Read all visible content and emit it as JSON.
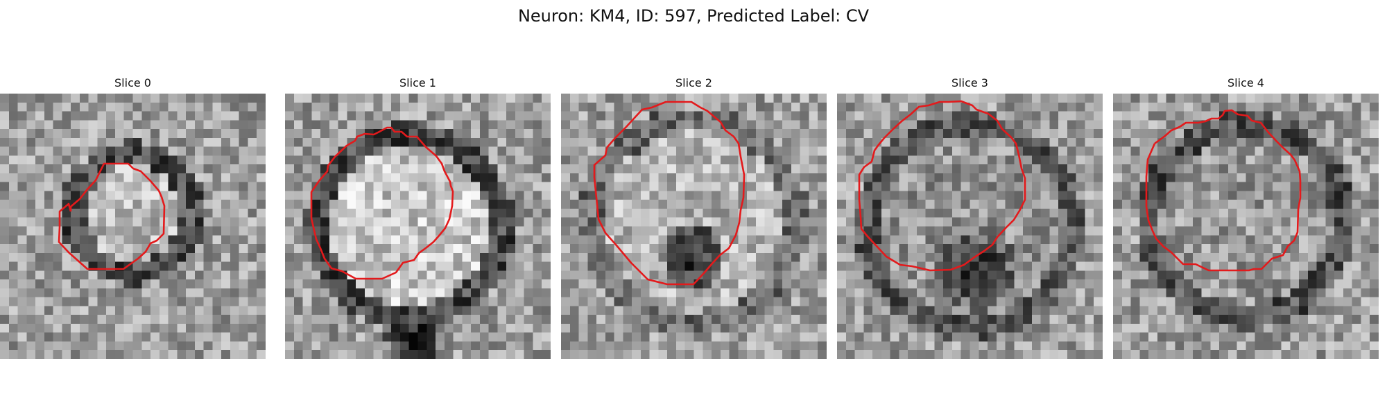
{
  "title": "Neuron: KM4, ID: 597, Predicted Label: CV",
  "colors": {
    "outline": "#e31a1c",
    "background": "#ffffff"
  },
  "panels": [
    {
      "label": "Slice 0"
    },
    {
      "label": "Slice 1"
    },
    {
      "label": "Slice 2"
    },
    {
      "label": "Slice 3"
    },
    {
      "label": "Slice 4"
    }
  ]
}
